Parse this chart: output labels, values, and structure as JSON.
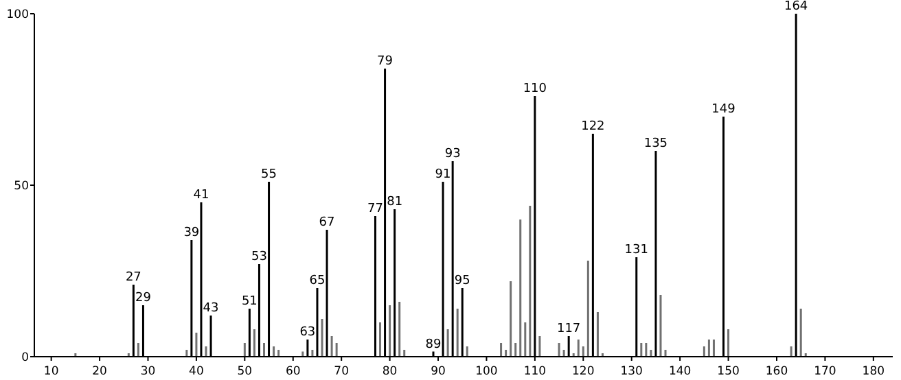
{
  "chart_data": {
    "type": "bar",
    "x": [
      15,
      26,
      27,
      28,
      29,
      38,
      39,
      40,
      41,
      42,
      43,
      50,
      51,
      52,
      53,
      54,
      55,
      56,
      57,
      62,
      63,
      64,
      65,
      66,
      67,
      68,
      69,
      77,
      78,
      79,
      80,
      81,
      82,
      83,
      89,
      91,
      92,
      93,
      94,
      95,
      96,
      103,
      104,
      105,
      106,
      107,
      108,
      109,
      110,
      111,
      115,
      116,
      117,
      118,
      119,
      120,
      121,
      122,
      123,
      124,
      131,
      132,
      133,
      134,
      135,
      136,
      137,
      145,
      146,
      147,
      149,
      150,
      163,
      164,
      165,
      166
    ],
    "values": [
      1,
      1,
      21,
      4,
      15,
      2,
      34,
      7,
      45,
      3,
      12,
      4,
      14,
      8,
      27,
      4,
      51,
      3,
      2,
      1.5,
      5,
      2,
      20,
      11,
      37,
      6,
      4,
      41,
      10,
      84,
      15,
      43,
      16,
      2,
      1.5,
      51,
      8,
      57,
      14,
      20,
      3,
      4,
      2,
      22,
      4,
      40,
      10,
      44,
      76,
      6,
      4,
      2,
      6,
      1,
      5,
      3,
      28,
      65,
      13,
      1,
      29,
      4,
      4,
      2,
      60,
      18,
      2,
      3,
      5,
      5,
      70,
      8,
      3,
      100,
      14,
      1
    ],
    "colors": [
      "#707070",
      "#707070",
      "#000000",
      "#707070",
      "#000000",
      "#707070",
      "#000000",
      "#707070",
      "#000000",
      "#707070",
      "#000000",
      "#707070",
      "#000000",
      "#707070",
      "#000000",
      "#707070",
      "#000000",
      "#707070",
      "#707070",
      "#707070",
      "#000000",
      "#707070",
      "#000000",
      "#707070",
      "#000000",
      "#707070",
      "#707070",
      "#000000",
      "#707070",
      "#000000",
      "#707070",
      "#000000",
      "#707070",
      "#707070",
      "#000000",
      "#000000",
      "#707070",
      "#000000",
      "#707070",
      "#000000",
      "#707070",
      "#707070",
      "#707070",
      "#707070",
      "#707070",
      "#707070",
      "#707070",
      "#707070",
      "#000000",
      "#707070",
      "#707070",
      "#707070",
      "#000000",
      "#707070",
      "#707070",
      "#707070",
      "#707070",
      "#000000",
      "#707070",
      "#707070",
      "#000000",
      "#707070",
      "#707070",
      "#707070",
      "#000000",
      "#707070",
      "#707070",
      "#707070",
      "#707070",
      "#707070",
      "#000000",
      "#707070",
      "#707070",
      "#000000",
      "#707070",
      "#707070"
    ],
    "annotations": [
      {
        "text": "27",
        "x": 27,
        "y": 21
      },
      {
        "text": "29",
        "x": 29,
        "y": 15
      },
      {
        "text": "39",
        "x": 39,
        "y": 34
      },
      {
        "text": "41",
        "x": 41,
        "y": 45
      },
      {
        "text": "43",
        "x": 43,
        "y": 12
      },
      {
        "text": "51",
        "x": 51,
        "y": 14
      },
      {
        "text": "53",
        "x": 53,
        "y": 27
      },
      {
        "text": "55",
        "x": 55,
        "y": 51
      },
      {
        "text": "63",
        "x": 63,
        "y": 5
      },
      {
        "text": "65",
        "x": 65,
        "y": 20
      },
      {
        "text": "67",
        "x": 67,
        "y": 37
      },
      {
        "text": "77",
        "x": 77,
        "y": 41
      },
      {
        "text": "79",
        "x": 79,
        "y": 84
      },
      {
        "text": "81",
        "x": 81,
        "y": 43
      },
      {
        "text": "89",
        "x": 89,
        "y": 1.5
      },
      {
        "text": "91",
        "x": 91,
        "y": 51
      },
      {
        "text": "93",
        "x": 93,
        "y": 57
      },
      {
        "text": "95",
        "x": 95,
        "y": 20
      },
      {
        "text": "110",
        "x": 110,
        "y": 76
      },
      {
        "text": "117",
        "x": 117,
        "y": 6
      },
      {
        "text": "122",
        "x": 122,
        "y": 65
      },
      {
        "text": "131",
        "x": 131,
        "y": 29
      },
      {
        "text": "135",
        "x": 135,
        "y": 60
      },
      {
        "text": "149",
        "x": 149,
        "y": 70
      },
      {
        "text": "164",
        "x": 164,
        "y": 100
      }
    ],
    "xlim": [
      6.5,
      184
    ],
    "xticks": [
      10,
      20,
      30,
      40,
      50,
      60,
      70,
      80,
      90,
      100,
      110,
      120,
      130,
      140,
      150,
      160,
      170,
      180
    ],
    "ylim": [
      0,
      100
    ],
    "yticks": [
      0,
      50,
      100
    ],
    "grid": false
  }
}
